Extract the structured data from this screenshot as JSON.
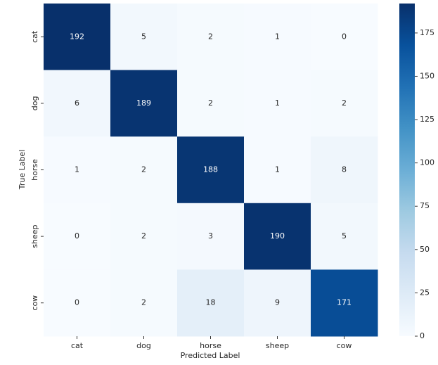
{
  "chart_data": {
    "type": "heatmap",
    "x_label": "Predicted Label",
    "y_label": "True Label",
    "x_categories": [
      "cat",
      "dog",
      "horse",
      "sheep",
      "cow"
    ],
    "y_categories": [
      "cat",
      "dog",
      "horse",
      "sheep",
      "cow"
    ],
    "values": [
      [
        192,
        5,
        2,
        1,
        0
      ],
      [
        6,
        189,
        2,
        1,
        2
      ],
      [
        1,
        2,
        188,
        1,
        8
      ],
      [
        0,
        2,
        3,
        190,
        5
      ],
      [
        0,
        2,
        18,
        9,
        171
      ]
    ],
    "colormap": "Blues",
    "colorbar_lim": [
      0,
      192
    ],
    "colorbar_ticks": [
      0,
      25,
      50,
      75,
      100,
      125,
      150,
      175
    ]
  }
}
